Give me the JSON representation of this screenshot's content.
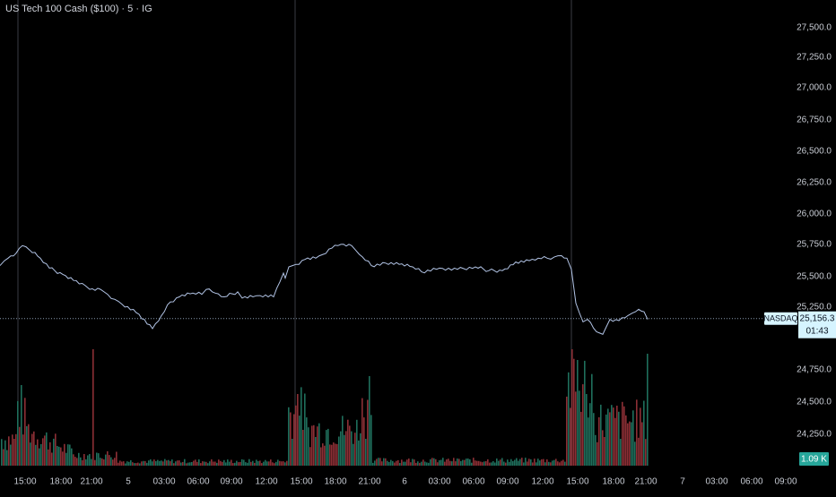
{
  "header": {
    "title": "US Tech 100 Cash ($100) · 5 · IG"
  },
  "colors": {
    "background": "#000000",
    "price_line": "#b2c4e6",
    "volume_up": "#1f6f5c",
    "volume_down": "#8c2f35",
    "axis_text": "#c8ccd4",
    "session_line": "#3a3d45",
    "current_line": "#8a9bb0",
    "label_bg": "#d6f4ff",
    "volume_badge": "#26a69a"
  },
  "chart_data": {
    "type": "line",
    "title": "US Tech 100 Cash ($100) · 5 · IG",
    "series": [
      {
        "name": "NASDAQ",
        "type": "line",
        "x_index": [
          0,
          5,
          9,
          18,
          25,
          33,
          45,
          55,
          70,
          85,
          95,
          100,
          112,
          120,
          128,
          136,
          155,
          170,
          180,
          190,
          200,
          215,
          225,
          230,
          240,
          250,
          265,
          270,
          282,
          290,
          305,
          312,
          316,
          318,
          322,
          330,
          340,
          352,
          360,
          370,
          380,
          392,
          397,
          404,
          414,
          430,
          445,
          460,
          470,
          490,
          510,
          530,
          545,
          560,
          575,
          590,
          600,
          610,
          618,
          626,
          632,
          637,
          642,
          650,
          655,
          665,
          672,
          680,
          690,
          700,
          705,
          712,
          718,
          722
        ],
        "values": [
          25580,
          25620,
          25640,
          25680,
          25740,
          25705,
          25640,
          25560,
          25510,
          25460,
          25420,
          25390,
          25390,
          25350,
          25310,
          25270,
          25190,
          25075,
          25180,
          25290,
          25330,
          25360,
          25350,
          25390,
          25360,
          25330,
          25370,
          25320,
          25330,
          25340,
          25330,
          25450,
          25520,
          25480,
          25570,
          25590,
          25630,
          25640,
          25670,
          25720,
          25750,
          25740,
          25700,
          25650,
          25580,
          25600,
          25590,
          25570,
          25530,
          25560,
          25550,
          25570,
          25540,
          25540,
          25610,
          25620,
          25640,
          25640,
          25650,
          25660,
          25640,
          25550,
          25280,
          25130,
          25150,
          25050,
          25030,
          25150,
          25140,
          25180,
          25200,
          25230,
          25210,
          25150
        ]
      },
      {
        "name": "Volume",
        "type": "bar"
      }
    ],
    "x_ticks": [
      "15:00",
      "18:00",
      "21:00",
      "5",
      "03:00",
      "06:00",
      "09:00",
      "12:00",
      "15:00",
      "18:00",
      "21:00",
      "6",
      "03:00",
      "06:00",
      "09:00",
      "12:00",
      "15:00",
      "18:00",
      "21:00",
      "7",
      "03:00",
      "06:00",
      "09:00"
    ],
    "y_ticks": [
      "27,500.0",
      "27,250.0",
      "27,000.0",
      "26,750.0",
      "26,500.0",
      "26,250.0",
      "26,000.0",
      "25,750.0",
      "25,500.0",
      "25,250.0",
      "24,750.0",
      "24,500.0",
      "24,250.0"
    ],
    "ylim": [
      24050,
      27570
    ],
    "current": {
      "symbol": "NASDAQ",
      "price": "25,156.3",
      "countdown": "01:43"
    },
    "volume_label": "1.09 K"
  }
}
